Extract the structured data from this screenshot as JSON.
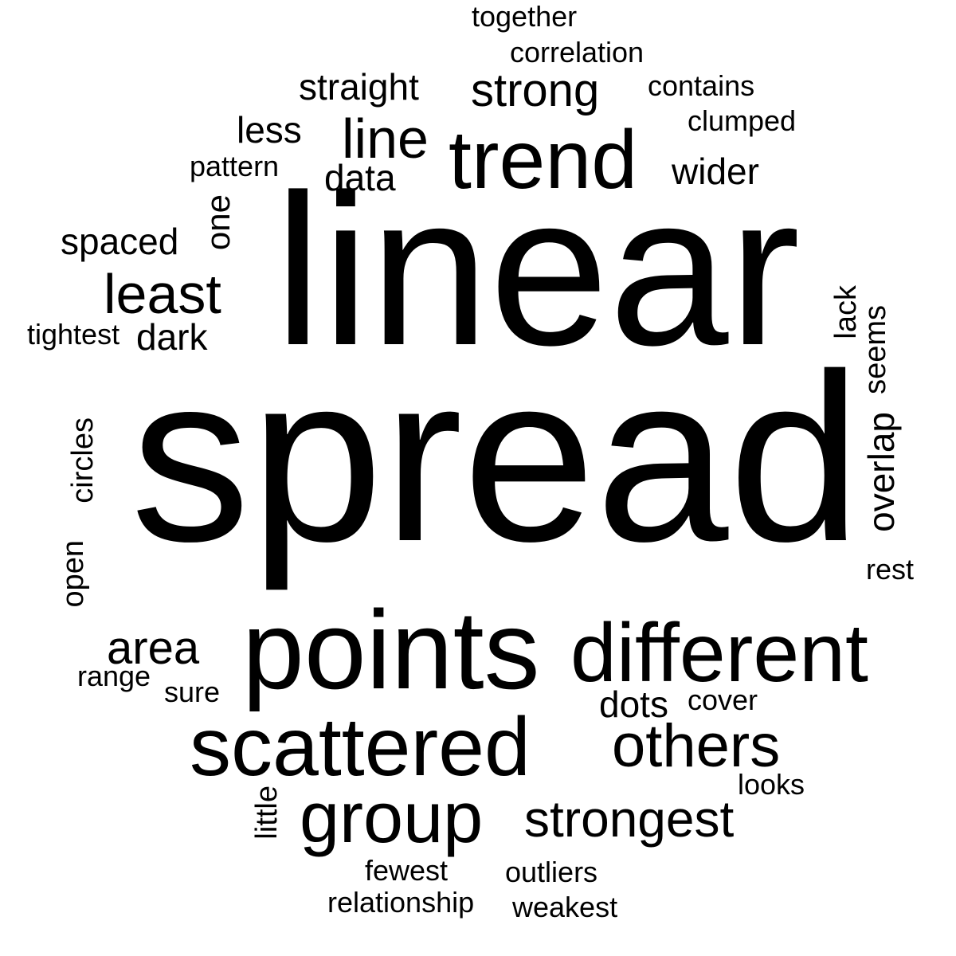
{
  "word_cloud": {
    "text_color": "#000000",
    "background_color": "#ffffff",
    "words": {
      "linear": "linear",
      "spread": "spread",
      "points": "points",
      "different": "different",
      "scattered": "scattered",
      "trend": "trend",
      "others": "others",
      "group": "group",
      "strongest": "strongest",
      "line": "line",
      "strong": "strong",
      "least": "least",
      "straight": "straight",
      "overlap": "overlap",
      "area": "area",
      "less": "less",
      "spaced": "spaced",
      "wider": "wider",
      "data": "data",
      "dots": "dots",
      "dark": "dark",
      "one": "one",
      "correlation": "correlation",
      "together": "together",
      "contains": "contains",
      "clumped": "clumped",
      "pattern": "pattern",
      "tightest": "tightest",
      "circles": "circles",
      "seems": "seems",
      "lack": "lack",
      "open": "open",
      "rest": "rest",
      "range": "range",
      "sure": "sure",
      "cover": "cover",
      "looks": "looks",
      "little": "little",
      "fewest": "fewest",
      "outliers": "outliers",
      "relationship": "relationship",
      "weakest": "weakest"
    }
  }
}
